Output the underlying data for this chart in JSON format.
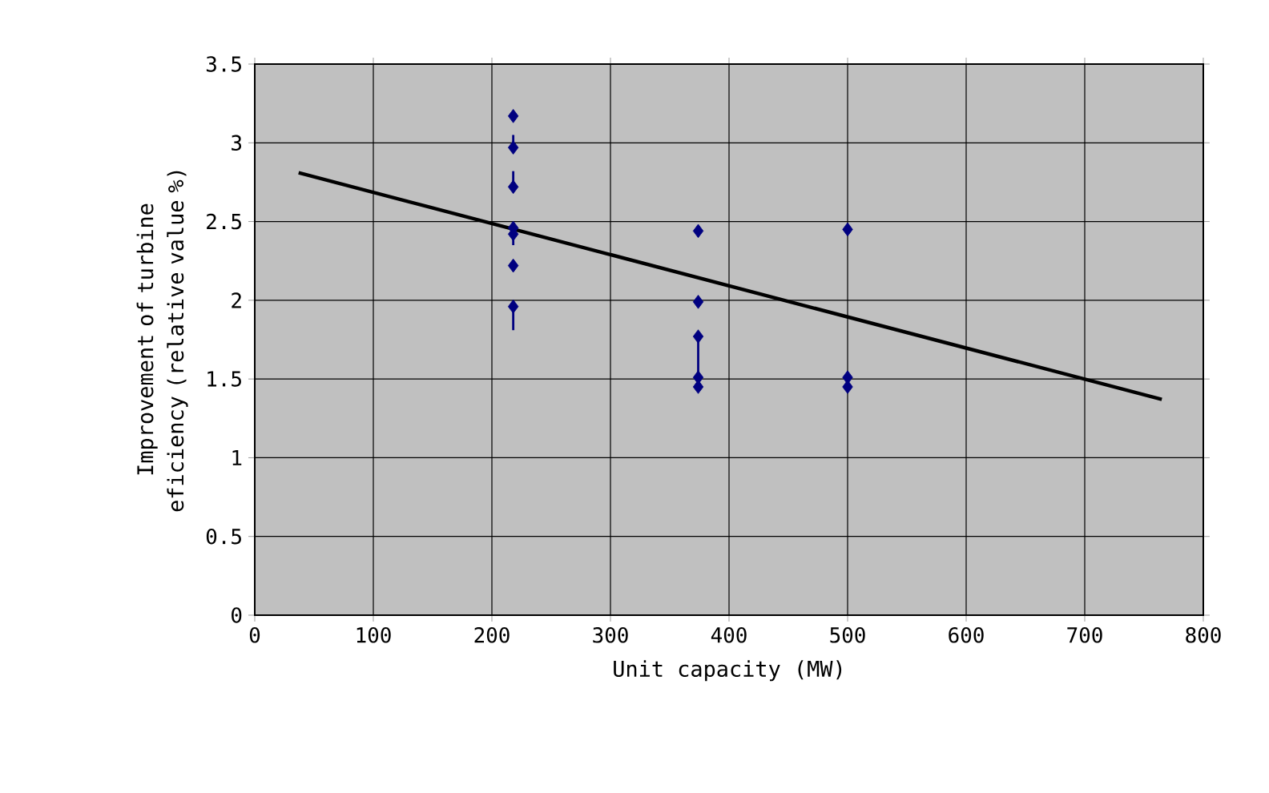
{
  "chart_data": {
    "type": "scatter",
    "xlabel": "Unit capacity (MW)",
    "ylabel": "Improvement of turbine eficiency (relative value %)",
    "xlim": [
      0,
      800
    ],
    "xticks": [
      0,
      100,
      200,
      300,
      400,
      500,
      600,
      700,
      800
    ],
    "ylim": [
      0,
      3.5
    ],
    "yticks": [
      0,
      0.5,
      1,
      1.5,
      2,
      2.5,
      3,
      3.5
    ],
    "grid": true,
    "marker": "diamond",
    "series": [
      {
        "color": "#000080",
        "x": [
          218,
          218,
          218,
          218,
          218,
          218,
          218,
          374,
          374,
          374,
          374,
          374,
          500,
          500,
          500
        ],
        "values": [
          3.17,
          2.97,
          2.72,
          2.46,
          2.42,
          2.22,
          1.96,
          2.44,
          1.99,
          1.77,
          1.51,
          1.45,
          2.45,
          1.51,
          1.45
        ],
        "errors": [
          null,
          [
            2.97,
            3.05
          ],
          [
            2.72,
            2.82
          ],
          null,
          [
            2.35,
            2.42
          ],
          null,
          [
            1.81,
            1.96
          ],
          null,
          null,
          [
            1.51,
            1.77
          ],
          null,
          null,
          null,
          null,
          null
        ]
      },
      {
        "type": "line",
        "color": "#000000",
        "marker": "none",
        "line_style": "solid",
        "x": [
          37,
          765
        ],
        "values": [
          2.81,
          1.37
        ]
      }
    ]
  }
}
